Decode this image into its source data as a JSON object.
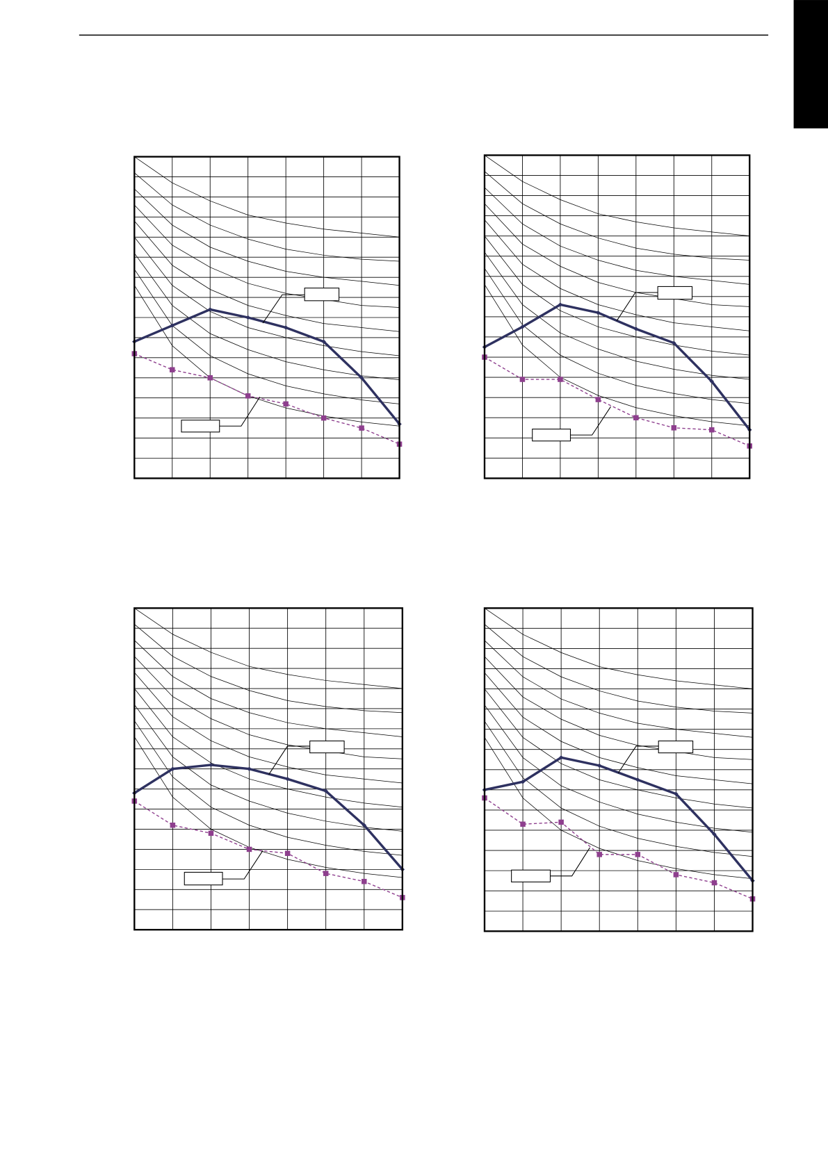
{
  "chart_data": [
    {
      "type": "line",
      "categories": [
        null,
        null,
        null,
        null,
        null,
        null,
        null,
        null
      ],
      "ylim": [
        0,
        16
      ],
      "yticks": [
        0,
        1,
        2,
        3,
        4,
        5,
        6,
        7,
        8,
        9,
        10,
        11,
        12,
        13,
        14,
        15,
        16
      ],
      "grid": true,
      "series": [
        {
          "color": "#2e3160",
          "values": [
            6.8,
            7.6,
            8.4,
            8.0,
            7.5,
            6.8,
            5.0,
            2.7
          ]
        },
        {
          "color": "#8e3f8e",
          "values": [
            6.2,
            5.4,
            5.0,
            4.1,
            3.7,
            3.0,
            2.5,
            1.7
          ]
        },
        {
          "color": "#000000",
          "values": [
            16,
            14.7,
            13.8,
            13.1,
            12.7,
            12.4,
            12.2,
            12.0
          ]
        },
        {
          "color": "#000000",
          "values": [
            15.2,
            13.6,
            12.6,
            11.9,
            11.4,
            11.1,
            10.9,
            10.8
          ]
        },
        {
          "color": "#000000",
          "values": [
            14.4,
            12.6,
            11.5,
            10.8,
            10.3,
            10.0,
            9.8,
            9.6
          ]
        },
        {
          "color": "#000000",
          "values": [
            13.6,
            11.6,
            10.5,
            9.7,
            9.2,
            8.9,
            8.6,
            8.5
          ]
        },
        {
          "color": "#000000",
          "values": [
            12.8,
            10.6,
            9.4,
            8.6,
            8.1,
            7.7,
            7.5,
            7.3
          ]
        },
        {
          "color": "#000000",
          "values": [
            12.0,
            9.6,
            8.3,
            7.5,
            7.0,
            6.6,
            6.3,
            6.1
          ]
        },
        {
          "color": "#000000",
          "values": [
            11.2,
            8.6,
            7.2,
            6.4,
            5.8,
            5.4,
            5.1,
            4.9
          ]
        },
        {
          "color": "#000000",
          "values": [
            10.4,
            7.6,
            6.1,
            5.2,
            4.6,
            4.2,
            3.9,
            3.7
          ]
        },
        {
          "color": "#000000",
          "values": [
            9.6,
            6.6,
            5.0,
            4.1,
            3.5,
            3.1,
            2.8,
            2.6
          ]
        }
      ]
    },
    {
      "type": "line",
      "categories": [
        null,
        null,
        null,
        null,
        null,
        null,
        null,
        null
      ],
      "ylim": [
        0,
        16
      ],
      "yticks": [
        0,
        1,
        2,
        3,
        4,
        5,
        6,
        7,
        8,
        9,
        10,
        11,
        12,
        13,
        14,
        15,
        16
      ],
      "grid": true,
      "series": [
        {
          "color": "#2e3160",
          "values": [
            6.5,
            7.5,
            8.6,
            8.2,
            7.4,
            6.7,
            4.8,
            2.4
          ]
        },
        {
          "color": "#8e3f8e",
          "values": [
            6.0,
            4.9,
            4.9,
            3.9,
            3.0,
            2.5,
            2.4,
            1.6
          ]
        },
        {
          "color": "#000000",
          "values": [
            16,
            14.7,
            13.8,
            13.1,
            12.7,
            12.4,
            12.2,
            12.0
          ]
        },
        {
          "color": "#000000",
          "values": [
            15.2,
            13.6,
            12.6,
            11.9,
            11.4,
            11.1,
            10.9,
            10.8
          ]
        },
        {
          "color": "#000000",
          "values": [
            14.4,
            12.6,
            11.5,
            10.8,
            10.3,
            10.0,
            9.8,
            9.6
          ]
        },
        {
          "color": "#000000",
          "values": [
            13.6,
            11.6,
            10.5,
            9.7,
            9.2,
            8.9,
            8.6,
            8.5
          ]
        },
        {
          "color": "#000000",
          "values": [
            12.8,
            10.6,
            9.4,
            8.6,
            8.1,
            7.7,
            7.5,
            7.3
          ]
        },
        {
          "color": "#000000",
          "values": [
            12.0,
            9.6,
            8.3,
            7.5,
            7.0,
            6.6,
            6.3,
            6.1
          ]
        },
        {
          "color": "#000000",
          "values": [
            11.2,
            8.6,
            7.2,
            6.4,
            5.8,
            5.4,
            5.1,
            4.9
          ]
        },
        {
          "color": "#000000",
          "values": [
            10.4,
            7.6,
            6.1,
            5.2,
            4.6,
            4.2,
            3.9,
            3.7
          ]
        },
        {
          "color": "#000000",
          "values": [
            9.6,
            6.6,
            5.0,
            4.1,
            3.5,
            3.1,
            2.8,
            2.6
          ]
        }
      ]
    },
    {
      "type": "line",
      "categories": [
        null,
        null,
        null,
        null,
        null,
        null,
        null,
        null
      ],
      "ylim": [
        0,
        16
      ],
      "yticks": [
        0,
        1,
        2,
        3,
        4,
        5,
        6,
        7,
        8,
        9,
        10,
        11,
        12,
        13,
        14,
        15,
        16
      ],
      "grid": true,
      "series": [
        {
          "color": "#2e3160",
          "values": [
            6.8,
            8.0,
            8.2,
            8.0,
            7.5,
            6.9,
            5.2,
            3.0
          ]
        },
        {
          "color": "#8e3f8e",
          "values": [
            6.4,
            5.2,
            4.8,
            4.0,
            3.8,
            2.8,
            2.4,
            1.6
          ]
        },
        {
          "color": "#000000",
          "values": [
            16,
            14.7,
            13.8,
            13.1,
            12.7,
            12.4,
            12.2,
            12.0
          ]
        },
        {
          "color": "#000000",
          "values": [
            15.2,
            13.6,
            12.6,
            11.9,
            11.4,
            11.1,
            10.9,
            10.8
          ]
        },
        {
          "color": "#000000",
          "values": [
            14.4,
            12.6,
            11.5,
            10.8,
            10.3,
            10.0,
            9.8,
            9.6
          ]
        },
        {
          "color": "#000000",
          "values": [
            13.6,
            11.6,
            10.5,
            9.7,
            9.2,
            8.9,
            8.6,
            8.5
          ]
        },
        {
          "color": "#000000",
          "values": [
            12.8,
            10.6,
            9.4,
            8.6,
            8.1,
            7.7,
            7.5,
            7.3
          ]
        },
        {
          "color": "#000000",
          "values": [
            12.0,
            9.6,
            8.3,
            7.5,
            7.0,
            6.6,
            6.3,
            6.1
          ]
        },
        {
          "color": "#000000",
          "values": [
            11.2,
            8.6,
            7.2,
            6.4,
            5.8,
            5.4,
            5.1,
            4.9
          ]
        },
        {
          "color": "#000000",
          "values": [
            10.4,
            7.6,
            6.1,
            5.2,
            4.6,
            4.2,
            3.9,
            3.7
          ]
        },
        {
          "color": "#000000",
          "values": [
            9.6,
            6.6,
            5.0,
            4.1,
            3.5,
            3.1,
            2.8,
            2.6
          ]
        }
      ]
    },
    {
      "type": "line",
      "categories": [
        null,
        null,
        null,
        null,
        null,
        null,
        null,
        null
      ],
      "ylim": [
        0,
        16
      ],
      "yticks": [
        0,
        1,
        2,
        3,
        4,
        5,
        6,
        7,
        8,
        9,
        10,
        11,
        12,
        13,
        14,
        15,
        16
      ],
      "grid": true,
      "series": [
        {
          "color": "#2e3160",
          "values": [
            7.0,
            7.4,
            8.6,
            8.2,
            7.5,
            6.8,
            4.8,
            2.5
          ]
        },
        {
          "color": "#8e3f8e",
          "values": [
            6.6,
            5.3,
            5.4,
            3.8,
            3.8,
            2.8,
            2.4,
            1.6
          ]
        },
        {
          "color": "#000000",
          "values": [
            16,
            14.7,
            13.8,
            13.1,
            12.7,
            12.4,
            12.2,
            12.0
          ]
        },
        {
          "color": "#000000",
          "values": [
            15.2,
            13.6,
            12.6,
            11.9,
            11.4,
            11.1,
            10.9,
            10.8
          ]
        },
        {
          "color": "#000000",
          "values": [
            14.4,
            12.6,
            11.5,
            10.8,
            10.3,
            10.0,
            9.8,
            9.6
          ]
        },
        {
          "color": "#000000",
          "values": [
            13.6,
            11.6,
            10.5,
            9.7,
            9.2,
            8.9,
            8.6,
            8.5
          ]
        },
        {
          "color": "#000000",
          "values": [
            12.8,
            10.6,
            9.4,
            8.6,
            8.1,
            7.7,
            7.5,
            7.3
          ]
        },
        {
          "color": "#000000",
          "values": [
            12.0,
            9.6,
            8.3,
            7.5,
            7.0,
            6.6,
            6.3,
            6.1
          ]
        },
        {
          "color": "#000000",
          "values": [
            11.2,
            8.6,
            7.2,
            6.4,
            5.8,
            5.4,
            5.1,
            4.9
          ]
        },
        {
          "color": "#000000",
          "values": [
            10.4,
            7.6,
            6.1,
            5.2,
            4.6,
            4.2,
            3.9,
            3.7
          ]
        },
        {
          "color": "#000000",
          "values": [
            9.6,
            6.6,
            5.0,
            4.1,
            3.5,
            3.1,
            2.8,
            2.6
          ]
        }
      ]
    }
  ]
}
